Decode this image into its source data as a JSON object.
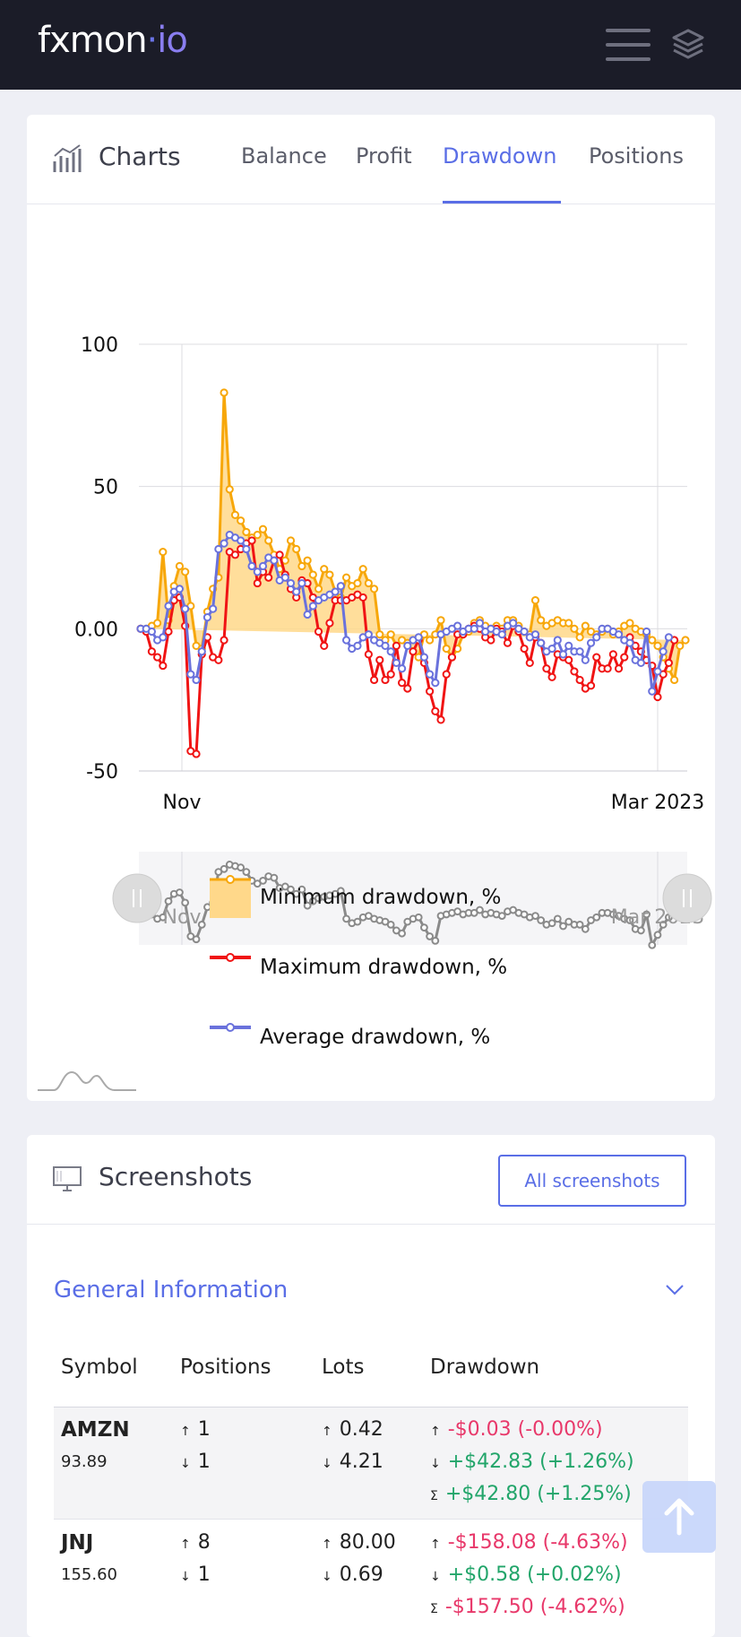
{
  "header": {
    "logo_main": "fxmon",
    "logo_dot": "·",
    "logo_suffix": "io",
    "menu_icon": "hamburger-icon",
    "layers_icon": "layers-icon"
  },
  "charts": {
    "title": "Charts",
    "icon": "bar-chart-icon",
    "tabs": [
      {
        "label": "Balance",
        "active": false
      },
      {
        "label": "Profit",
        "active": false
      },
      {
        "label": "Drawdown",
        "active": true
      },
      {
        "label": "Positions",
        "active": false
      }
    ]
  },
  "chart_data": {
    "type": "line",
    "y_ticks": [
      "100",
      "50",
      "0.00",
      "-50"
    ],
    "ylim": [
      -50,
      100
    ],
    "x_ticks": [
      "Nov",
      "Mar 2023"
    ],
    "navigator_labels": [
      "Nov",
      "Mar 2023"
    ],
    "legend": [
      {
        "label": "Minimum drawdown, %",
        "color": "#f7a70a",
        "style": "area"
      },
      {
        "label": "Maximum drawdown, %",
        "color": "#f01414",
        "style": "line"
      },
      {
        "label": "Average drawdown, %",
        "color": "#6a72dc",
        "style": "line"
      }
    ],
    "series": [
      {
        "name": "Minimum drawdown, %",
        "values": [
          0,
          0,
          1,
          2,
          27,
          3,
          15,
          22,
          20,
          8,
          -6,
          -7,
          6,
          14,
          18,
          83,
          49,
          40,
          38,
          34,
          32,
          33,
          35,
          31,
          26,
          21,
          24,
          31,
          28,
          22,
          24,
          19,
          14,
          21,
          19,
          13,
          11,
          18,
          15,
          16,
          21,
          16,
          14,
          -2,
          -4,
          -2,
          -6,
          -4,
          -5,
          -8,
          -10,
          -2,
          -4,
          -2,
          3,
          -7,
          -10,
          -7,
          -2,
          -1,
          2,
          3,
          1,
          0,
          1,
          0,
          3,
          3,
          1,
          -1,
          -2,
          10,
          3,
          1,
          2,
          3,
          2,
          2,
          0,
          -3,
          1,
          -1,
          -2,
          -1,
          0,
          -2,
          -1,
          1,
          2,
          0,
          -1,
          -2,
          -4,
          -6,
          -10,
          -14,
          -18,
          -6,
          -4
        ]
      },
      {
        "name": "Maximum drawdown, %",
        "values": [
          0,
          -1,
          -8,
          -10,
          -13,
          -1,
          10,
          11,
          1,
          -43,
          -44,
          -9,
          -3,
          -10,
          -11,
          -4,
          27,
          26,
          28,
          30,
          31,
          16,
          20,
          18,
          24,
          26,
          19,
          14,
          11,
          17,
          16,
          11,
          -1,
          -6,
          2,
          10,
          10,
          10,
          11,
          12,
          11,
          -9,
          -18,
          -11,
          -18,
          -16,
          -6,
          -19,
          -21,
          -8,
          -4,
          -12,
          -22,
          -29,
          -32,
          -16,
          -10,
          -2,
          -2,
          0,
          1,
          0,
          -3,
          -4,
          0,
          -1,
          -5,
          1,
          -1,
          -7,
          -12,
          -3,
          -5,
          -14,
          -17,
          -9,
          -10,
          -11,
          -15,
          -18,
          -21,
          -20,
          -10,
          -14,
          -14,
          -9,
          -14,
          -10,
          -3,
          -6,
          -8,
          -11,
          -13,
          -24,
          -16,
          -12,
          -4
        ]
      },
      {
        "name": "Average drawdown, %",
        "values": [
          0,
          0,
          -1,
          -4,
          -3,
          8,
          13,
          14,
          7,
          -16,
          -18,
          -8,
          4,
          7,
          28,
          30,
          33,
          32,
          31,
          28,
          22,
          20,
          22,
          25,
          24,
          17,
          18,
          16,
          13,
          16,
          5,
          8,
          10,
          11,
          12,
          13,
          15,
          -4,
          -7,
          -6,
          -3,
          -2,
          -4,
          -5,
          -6,
          -8,
          -12,
          -14,
          -6,
          -4,
          -3,
          -10,
          -16,
          -19,
          -2,
          -1,
          0,
          1,
          -1,
          0,
          0,
          2,
          -1,
          0,
          -1,
          -2,
          1,
          2,
          0,
          -1,
          -3,
          -2,
          -5,
          -8,
          -7,
          -4,
          -9,
          -6,
          -8,
          -8,
          -11,
          -5,
          -3,
          0,
          0,
          -1,
          -2,
          -4,
          -5,
          -11,
          -12,
          -1,
          -22,
          -15,
          -8,
          -3
        ]
      }
    ]
  },
  "screenshots": {
    "title": "Screenshots",
    "icon": "monitor-icon",
    "button_label": "All screenshots"
  },
  "general": {
    "title": "General Information",
    "chevron_icon": "chevron-down-icon",
    "columns": [
      "Symbol",
      "Positions",
      "Lots",
      "Drawdown"
    ],
    "rows": [
      {
        "symbol": "AMZN",
        "price": "93.89",
        "pos_up": "1",
        "pos_down": "1",
        "lots_up": "0.42",
        "lots_down": "4.21",
        "dd_up": "-$0.03 (-0.00%)",
        "dd_down": "+$42.83 (+1.26%)",
        "dd_sum": "+$42.80 (+1.25%)"
      },
      {
        "symbol": "JNJ",
        "price": "155.60",
        "pos_up": "8",
        "pos_down": "1",
        "lots_up": "80.00",
        "lots_down": "0.69",
        "dd_up": "-$158.08 (-4.63%)",
        "dd_down": "+$0.58 (+0.02%)",
        "dd_sum": "-$157.50 (-4.62%)"
      }
    ]
  },
  "scroll_top": {
    "icon": "arrow-up-icon"
  },
  "arrows": {
    "up": "↑",
    "down": "↓",
    "sum": "Σ"
  }
}
